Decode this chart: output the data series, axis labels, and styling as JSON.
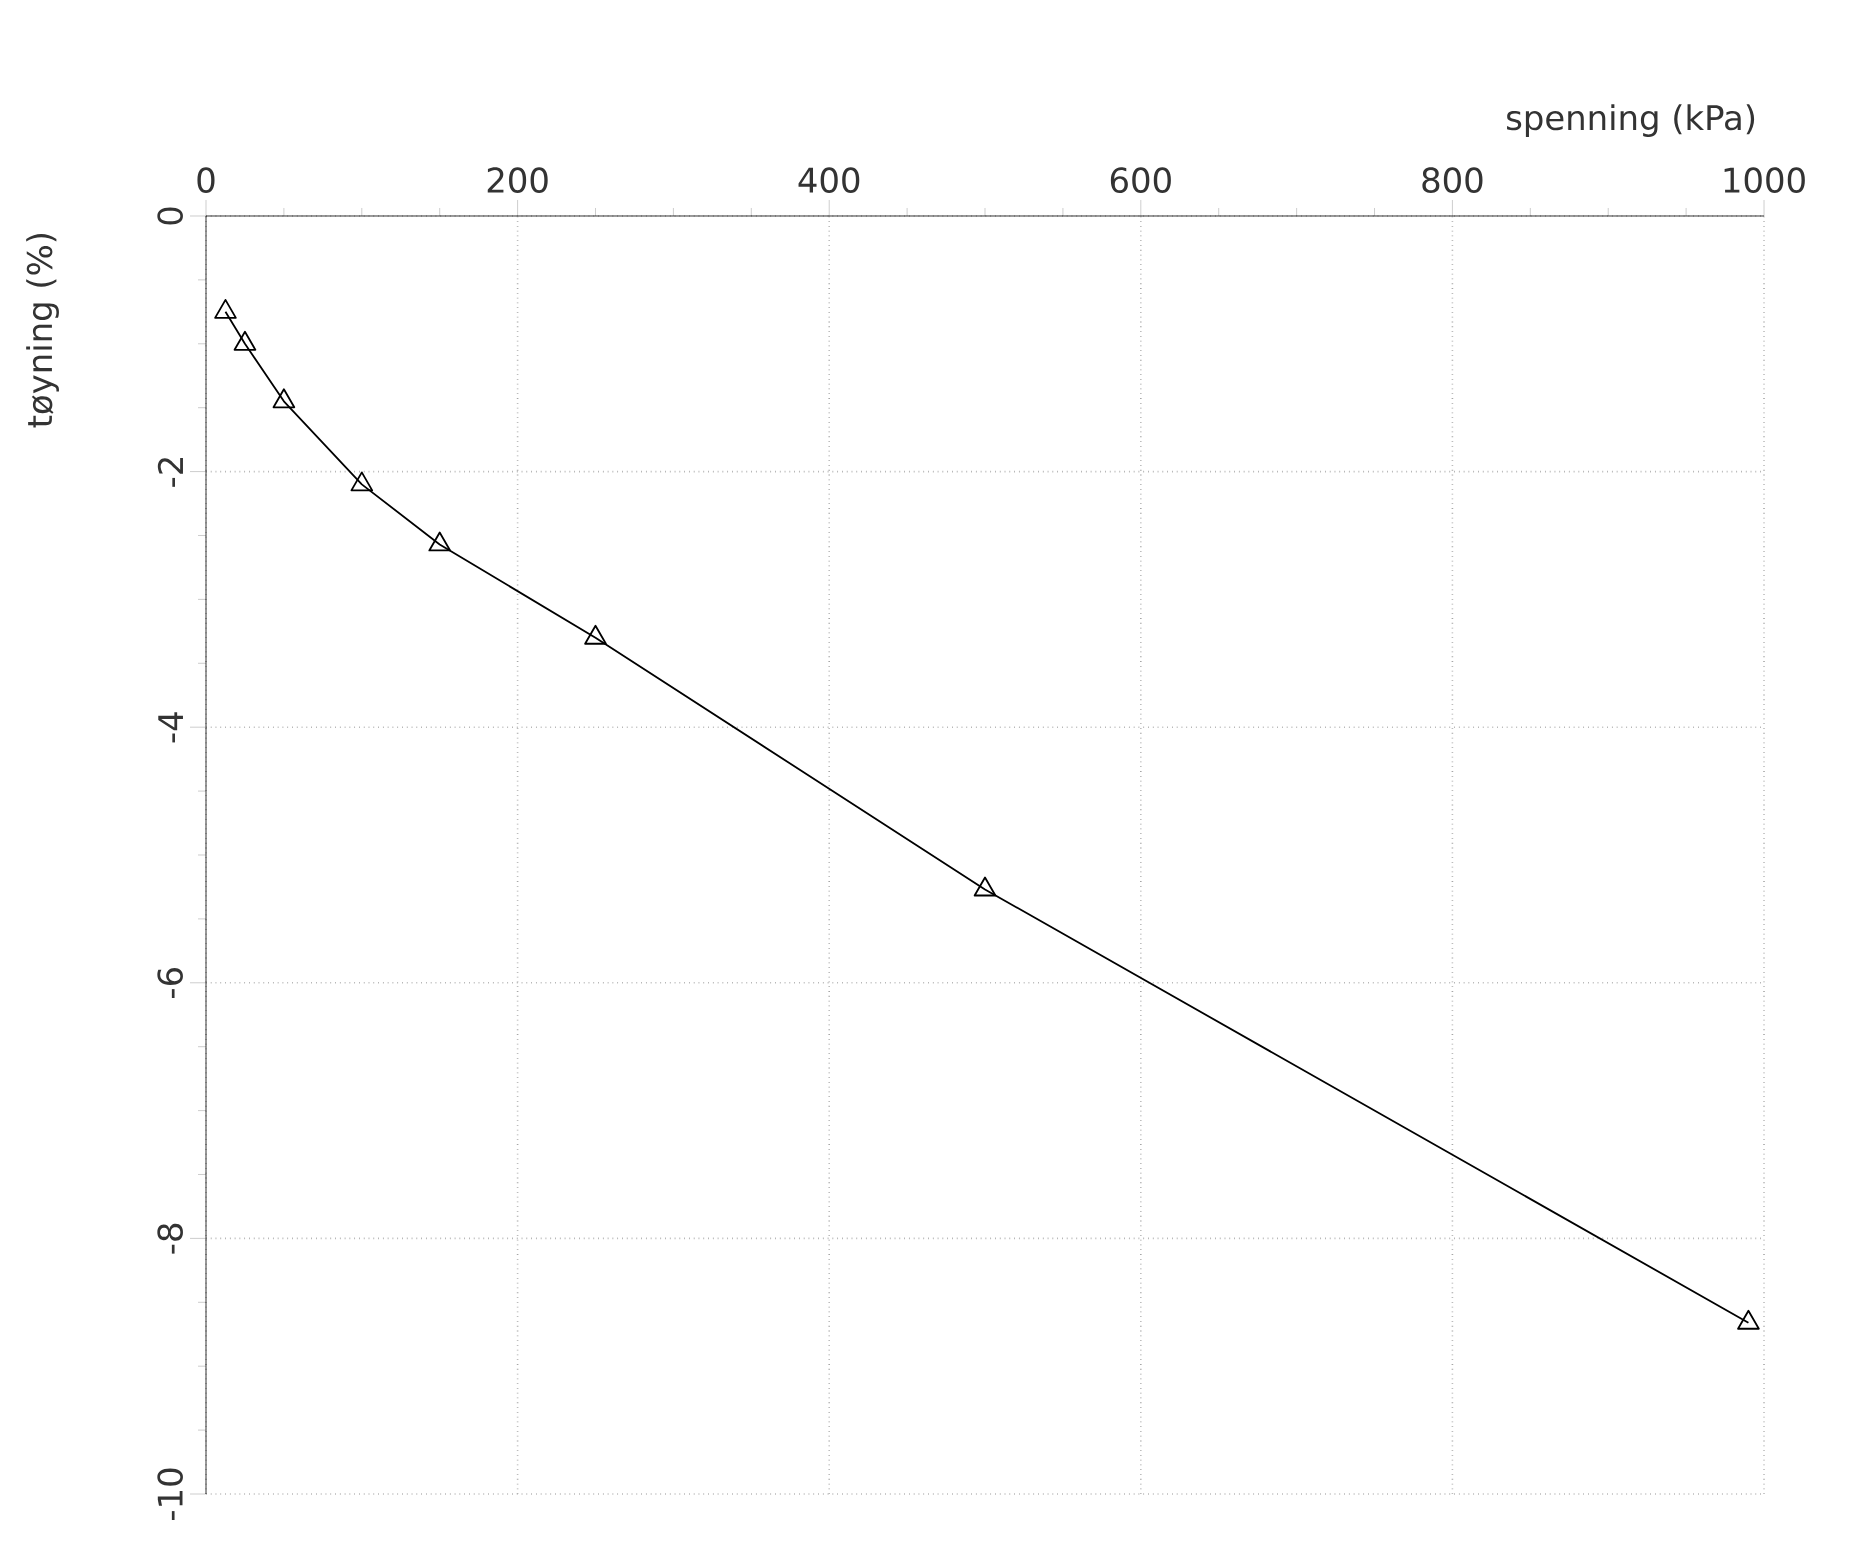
{
  "chart_data": {
    "type": "line",
    "xlabel": "spenning (kPa)",
    "ylabel": "tøyning (%)",
    "x": [
      12.5,
      25,
      50,
      100,
      150,
      250,
      500,
      990
    ],
    "series": [
      {
        "color": "#000000",
        "values": [
          -0.75,
          -1.0,
          -1.45,
          -2.1,
          -2.57,
          -3.3,
          -5.27,
          -8.66
        ]
      }
    ],
    "xlim": [
      0,
      1000
    ],
    "ylim": [
      -10,
      0
    ],
    "xticks": [
      0,
      200,
      400,
      600,
      800,
      1000
    ],
    "yticks": [
      -10,
      -8,
      -6,
      -4,
      -2,
      0
    ],
    "grid": true,
    "marker": "triangle",
    "line_style": "solid"
  }
}
